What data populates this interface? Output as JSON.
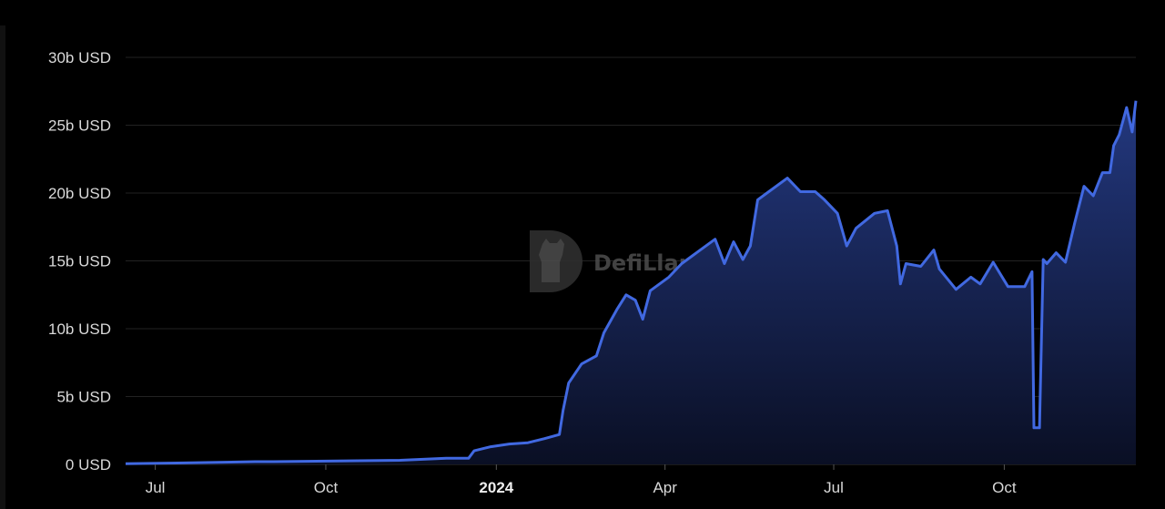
{
  "chart_data": {
    "type": "area",
    "title": "",
    "xlabel": "",
    "ylabel": "",
    "y_unit": "USD",
    "ylim": [
      0,
      30
    ],
    "y_ticks": [
      "0 USD",
      "5b USD",
      "10b USD",
      "15b USD",
      "20b USD",
      "25b USD",
      "30b USD"
    ],
    "y_tick_values": [
      0,
      5,
      10,
      15,
      20,
      25,
      30
    ],
    "x_ticks": [
      {
        "label": "Jul",
        "date": "2023-07-01",
        "bold": false
      },
      {
        "label": "Oct",
        "date": "2023-10-01",
        "bold": false
      },
      {
        "label": "2024",
        "date": "2024-01-01",
        "bold": true
      },
      {
        "label": "Apr",
        "date": "2024-04-01",
        "bold": false
      },
      {
        "label": "Jul",
        "date": "2024-07-01",
        "bold": false
      },
      {
        "label": "Oct",
        "date": "2024-10-01",
        "bold": false
      }
    ],
    "xlim": [
      "2023-06-15",
      "2024-12-11"
    ],
    "grid": true,
    "line_color": "#4169e1",
    "fill_color_top": "#23387f",
    "fill_color_bottom": "#0a0f24",
    "watermark": "DefiLlama",
    "series": [
      {
        "values_unit": "billion USD",
        "points": [
          [
            "2023-06-15",
            0.05
          ],
          [
            "2023-07-13",
            0.1
          ],
          [
            "2023-08-24",
            0.2
          ],
          [
            "2023-09-03",
            0.2
          ],
          [
            "2023-11-10",
            0.3
          ],
          [
            "2023-12-05",
            0.45
          ],
          [
            "2023-12-17",
            0.45
          ],
          [
            "2023-12-20",
            1.0
          ],
          [
            "2023-12-29",
            1.3
          ],
          [
            "2024-01-08",
            1.5
          ],
          [
            "2024-01-18",
            1.6
          ],
          [
            "2024-01-27",
            1.9
          ],
          [
            "2024-02-04",
            2.2
          ],
          [
            "2024-02-06",
            4.0
          ],
          [
            "2024-02-09",
            6.0
          ],
          [
            "2024-02-16",
            7.4
          ],
          [
            "2024-02-24",
            8.0
          ],
          [
            "2024-02-28",
            9.7
          ],
          [
            "2024-03-06",
            11.4
          ],
          [
            "2024-03-11",
            12.5
          ],
          [
            "2024-03-16",
            12.1
          ],
          [
            "2024-03-20",
            10.7
          ],
          [
            "2024-03-24",
            12.8
          ],
          [
            "2024-04-03",
            13.8
          ],
          [
            "2024-04-10",
            14.8
          ],
          [
            "2024-04-20",
            15.8
          ],
          [
            "2024-04-28",
            16.6
          ],
          [
            "2024-05-03",
            14.8
          ],
          [
            "2024-05-08",
            16.4
          ],
          [
            "2024-05-13",
            15.1
          ],
          [
            "2024-05-17",
            16.1
          ],
          [
            "2024-05-21",
            19.5
          ],
          [
            "2024-05-27",
            20.1
          ],
          [
            "2024-06-06",
            21.1
          ],
          [
            "2024-06-13",
            20.1
          ],
          [
            "2024-06-21",
            20.1
          ],
          [
            "2024-06-26",
            19.5
          ],
          [
            "2024-07-03",
            18.5
          ],
          [
            "2024-07-08",
            16.1
          ],
          [
            "2024-07-13",
            17.4
          ],
          [
            "2024-07-23",
            18.5
          ],
          [
            "2024-07-30",
            18.7
          ],
          [
            "2024-08-04",
            16.1
          ],
          [
            "2024-08-06",
            13.3
          ],
          [
            "2024-08-09",
            14.8
          ],
          [
            "2024-08-17",
            14.6
          ],
          [
            "2024-08-24",
            15.8
          ],
          [
            "2024-08-27",
            14.4
          ],
          [
            "2024-09-05",
            12.9
          ],
          [
            "2024-09-13",
            13.8
          ],
          [
            "2024-09-18",
            13.3
          ],
          [
            "2024-09-25",
            14.9
          ],
          [
            "2024-10-03",
            13.1
          ],
          [
            "2024-10-12",
            13.1
          ],
          [
            "2024-10-16",
            14.2
          ],
          [
            "2024-10-17",
            2.7
          ],
          [
            "2024-10-20",
            2.7
          ],
          [
            "2024-10-22",
            15.1
          ],
          [
            "2024-10-24",
            14.8
          ],
          [
            "2024-10-29",
            15.6
          ],
          [
            "2024-11-03",
            14.9
          ],
          [
            "2024-11-08",
            17.8
          ],
          [
            "2024-11-13",
            20.5
          ],
          [
            "2024-11-18",
            19.8
          ],
          [
            "2024-11-23",
            21.5
          ],
          [
            "2024-11-27",
            21.5
          ],
          [
            "2024-11-29",
            23.5
          ],
          [
            "2024-12-02",
            24.3
          ],
          [
            "2024-12-06",
            26.3
          ],
          [
            "2024-12-09",
            24.5
          ],
          [
            "2024-12-11",
            26.8
          ]
        ]
      }
    ]
  }
}
